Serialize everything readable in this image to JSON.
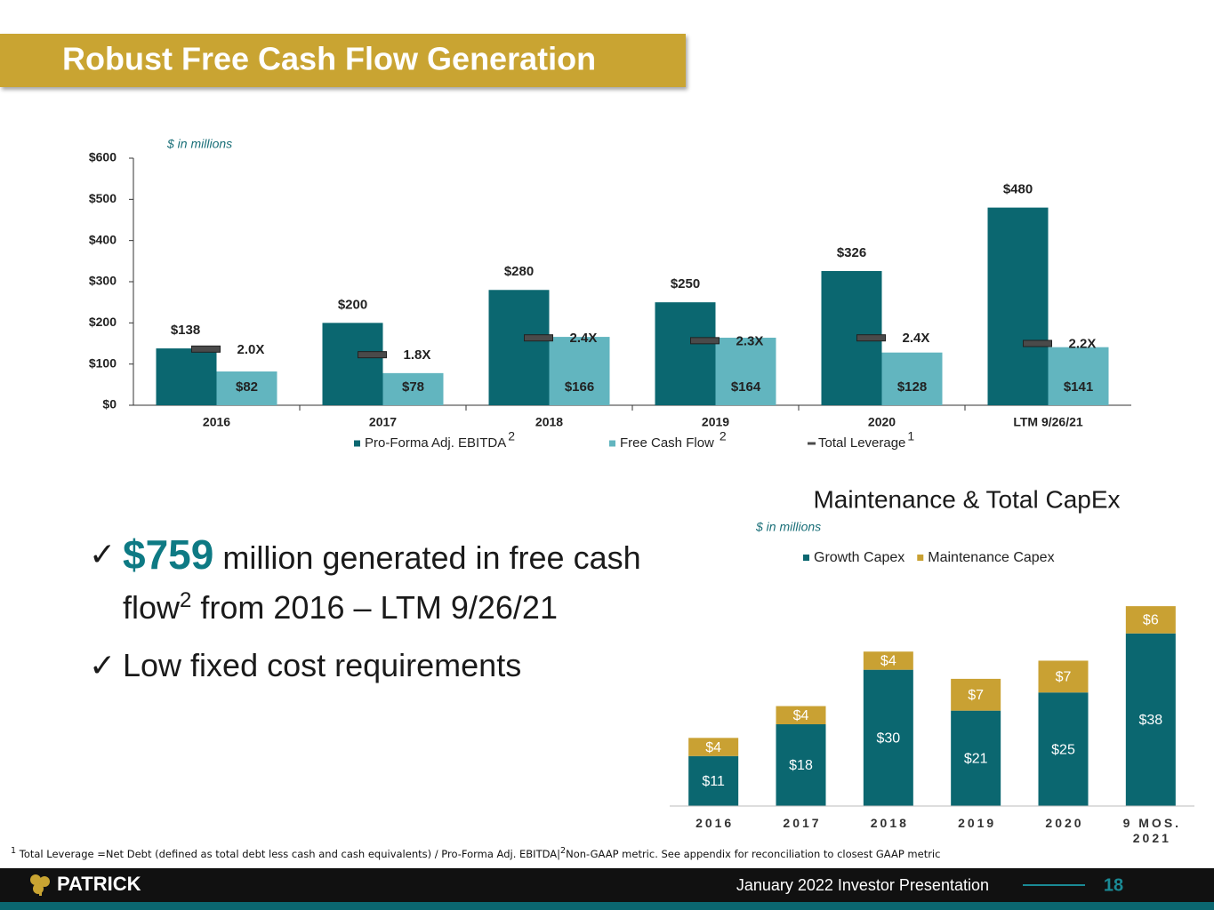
{
  "header": {
    "title": "Robust Free Cash Flow Generation"
  },
  "chart_data": [
    {
      "type": "bar",
      "subtitle": "$ in millions",
      "categories": [
        "2016",
        "2017",
        "2018",
        "2019",
        "2020",
        "LTM 9/26/21"
      ],
      "series": [
        {
          "name": "Pro-Forma Adj. EBITDA",
          "note": "2",
          "color": "#0b6770",
          "values": [
            138,
            200,
            280,
            250,
            326,
            480
          ],
          "value_labels": [
            "$138",
            "$200",
            "$280",
            "$250",
            "$326",
            "$480"
          ]
        },
        {
          "name": "Free Cash Flow",
          "note": "2",
          "color": "#62b5bf",
          "values": [
            82,
            78,
            166,
            164,
            128,
            141
          ],
          "value_labels": [
            "$82",
            "$78",
            "$166",
            "$164",
            "$128",
            "$141"
          ]
        },
        {
          "name": "Total Leverage",
          "note": "1",
          "mark": "dash",
          "axis": "y2",
          "color": "#4a4a4a",
          "values": [
            2.0,
            1.8,
            2.4,
            2.3,
            2.4,
            2.2
          ],
          "value_labels": [
            "2.0X",
            "1.8X",
            "2.4X",
            "2.3X",
            "2.4X",
            "2.2X"
          ]
        }
      ],
      "ylim": [
        0,
        600
      ],
      "yticks": [
        {
          "value": 0,
          "label": "$0"
        },
        {
          "value": 100,
          "label": "$100"
        },
        {
          "value": 200,
          "label": "$200"
        },
        {
          "value": 300,
          "label": "$300"
        },
        {
          "value": 400,
          "label": "$400"
        },
        {
          "value": 500,
          "label": "$500"
        },
        {
          "value": 600,
          "label": "$600"
        }
      ],
      "y2lim": [
        0,
        8.8
      ]
    },
    {
      "type": "stacked_bar",
      "title": "Maintenance & Total CapEx",
      "subtitle": "$ in millions",
      "categories": [
        "2016",
        "2017",
        "2018",
        "2019",
        "2020",
        "9 MOS. 2021"
      ],
      "series": [
        {
          "name": "Growth Capex",
          "color": "#0b6770",
          "values": [
            11,
            18,
            30,
            21,
            25,
            38
          ],
          "value_labels": [
            "$11",
            "$18",
            "$30",
            "$21",
            "$25",
            "$38"
          ]
        },
        {
          "name": "Maintenance Capex",
          "color": "#c9a133",
          "values": [
            4,
            4,
            4,
            7,
            7,
            6
          ],
          "value_labels": [
            "$4",
            "$4",
            "$4",
            "$7",
            "$7",
            "$6"
          ]
        }
      ],
      "ylim": [
        0,
        45
      ]
    }
  ],
  "bullets": [
    {
      "highlight": "$759",
      "text_1": "million generated in free cash flow",
      "sup": "2",
      "text_2": "from 2016 – LTM 9/26/21"
    },
    {
      "text_1": "Low fixed cost requirements"
    }
  ],
  "footnotes": [
    {
      "mark": "1",
      "text": "Total Leverage =Net Debt (defined as total debt less cash and cash equivalents) / Pro-Forma Adj. EBITDA|"
    },
    {
      "mark": "2",
      "text": "Non-GAAP metric. See appendix for reconciliation to closest GAAP metric"
    }
  ],
  "footer": {
    "logo": "PATRICK",
    "event": "January 2022 Investor Presentation",
    "page": "18"
  }
}
